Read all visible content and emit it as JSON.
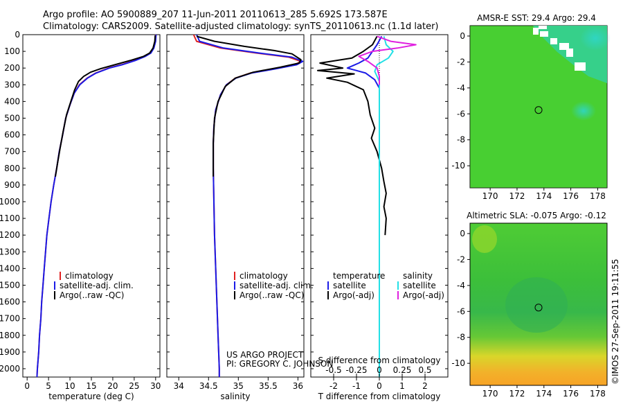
{
  "header": {
    "line1": "Argo profile: AO 5900889_207 11-Jun-2011 20110613_285 5.692S 173.587E",
    "line2": "Climatology: CARS2009. Satellite-adjusted climatology: synTS_20110613.nc (1.1d later)"
  },
  "credit": {
    "project": "US ARGO PROJECT",
    "pi": "PI: GREGORY C. JOHNSON"
  },
  "stamp": "©IMOS 27-Sep-2011 19:11:55",
  "colors": {
    "climatology": "#e02020",
    "satellite": "#1a1ae6",
    "argo": "#000000",
    "satellite_s": "#22e0e6",
    "argo_s": "#e020e0"
  },
  "chart_data": [
    {
      "id": "temperature",
      "type": "line",
      "xlabel": "temperature (deg C)",
      "ylabel": "",
      "xlim": [
        -1,
        31
      ],
      "ylim": [
        2050,
        0
      ],
      "xticks": [
        0,
        5,
        10,
        15,
        20,
        25,
        30
      ],
      "yticks": [
        0,
        100,
        200,
        300,
        400,
        500,
        600,
        700,
        800,
        900,
        1000,
        1100,
        1200,
        1300,
        1400,
        1500,
        1600,
        1700,
        1800,
        1900,
        2000
      ],
      "legend": [
        "climatology",
        "satellite-adj. clim.",
        "Argo(..raw -QC)"
      ],
      "series": [
        {
          "name": "climatology",
          "color": "climatology",
          "points": [
            [
              30.0,
              0
            ],
            [
              29.9,
              40
            ],
            [
              29.5,
              80
            ],
            [
              28.8,
              110
            ],
            [
              27.5,
              130
            ],
            [
              25.0,
              155
            ],
            [
              22.0,
              180
            ],
            [
              19.0,
              200
            ],
            [
              16.0,
              230
            ],
            [
              14.0,
              260
            ],
            [
              12.2,
              300
            ],
            [
              11.0,
              350
            ],
            [
              10.0,
              420
            ],
            [
              9.0,
              500
            ],
            [
              8.3,
              600
            ],
            [
              7.5,
              700
            ],
            [
              6.9,
              800
            ],
            [
              6.2,
              900
            ],
            [
              5.6,
              1000
            ],
            [
              5.1,
              1100
            ],
            [
              4.6,
              1200
            ],
            [
              4.3,
              1300
            ],
            [
              4.0,
              1400
            ],
            [
              3.7,
              1500
            ],
            [
              3.4,
              1600
            ],
            [
              3.2,
              1700
            ],
            [
              2.9,
              1800
            ],
            [
              2.7,
              1900
            ],
            [
              2.4,
              2000
            ],
            [
              2.3,
              2050
            ]
          ]
        },
        {
          "name": "satellite-adj. clim.",
          "color": "satellite",
          "points": [
            [
              30.1,
              0
            ],
            [
              30.0,
              40
            ],
            [
              29.6,
              80
            ],
            [
              28.9,
              110
            ],
            [
              27.6,
              130
            ],
            [
              25.2,
              155
            ],
            [
              22.2,
              180
            ],
            [
              19.2,
              200
            ],
            [
              16.1,
              230
            ],
            [
              14.1,
              260
            ],
            [
              12.3,
              300
            ],
            [
              11.0,
              350
            ],
            [
              10.0,
              420
            ],
            [
              9.0,
              500
            ],
            [
              8.3,
              600
            ],
            [
              7.5,
              700
            ],
            [
              6.9,
              800
            ],
            [
              6.2,
              900
            ],
            [
              5.6,
              1000
            ],
            [
              5.1,
              1100
            ],
            [
              4.6,
              1200
            ],
            [
              4.3,
              1300
            ],
            [
              4.0,
              1400
            ],
            [
              3.7,
              1500
            ],
            [
              3.4,
              1600
            ],
            [
              3.2,
              1700
            ],
            [
              2.9,
              1800
            ],
            [
              2.7,
              1900
            ],
            [
              2.4,
              2000
            ],
            [
              2.3,
              2050
            ]
          ]
        },
        {
          "name": "Argo(..raw -QC)",
          "color": "argo",
          "points": [
            [
              29.9,
              5
            ],
            [
              29.8,
              40
            ],
            [
              29.4,
              80
            ],
            [
              28.6,
              110
            ],
            [
              27.2,
              130
            ],
            [
              24.0,
              155
            ],
            [
              20.5,
              180
            ],
            [
              17.0,
              205
            ],
            [
              14.8,
              225
            ],
            [
              13.2,
              250
            ],
            [
              12.0,
              280
            ],
            [
              11.1,
              330
            ],
            [
              10.2,
              400
            ],
            [
              9.2,
              480
            ],
            [
              8.4,
              580
            ],
            [
              7.7,
              680
            ],
            [
              7.1,
              770
            ],
            [
              6.6,
              850
            ]
          ]
        }
      ]
    },
    {
      "id": "salinity",
      "type": "line",
      "xlabel": "salinity",
      "xlim": [
        33.8,
        36.1
      ],
      "ylim": [
        2050,
        0
      ],
      "xticks": [
        34,
        34.5,
        35,
        35.5,
        36
      ],
      "legend": [
        "climatology",
        "satellite-adj. clim.",
        "Argo(..raw -QC)"
      ],
      "series": [
        {
          "name": "climatology",
          "color": "climatology",
          "points": [
            [
              34.25,
              0
            ],
            [
              34.3,
              40
            ],
            [
              34.7,
              80
            ],
            [
              35.3,
              110
            ],
            [
              35.85,
              135
            ],
            [
              36.05,
              160
            ],
            [
              35.95,
              180
            ],
            [
              35.6,
              205
            ],
            [
              35.2,
              230
            ],
            [
              34.95,
              260
            ],
            [
              34.8,
              300
            ],
            [
              34.7,
              360
            ],
            [
              34.62,
              450
            ],
            [
              34.59,
              550
            ],
            [
              34.58,
              650
            ],
            [
              34.58,
              800
            ],
            [
              34.59,
              1000
            ],
            [
              34.6,
              1200
            ],
            [
              34.62,
              1400
            ],
            [
              34.64,
              1600
            ],
            [
              34.66,
              1800
            ],
            [
              34.68,
              2000
            ],
            [
              34.68,
              2050
            ]
          ]
        },
        {
          "name": "satellite-adj. clim.",
          "color": "satellite",
          "points": [
            [
              34.3,
              0
            ],
            [
              34.35,
              40
            ],
            [
              34.75,
              80
            ],
            [
              35.35,
              110
            ],
            [
              35.9,
              135
            ],
            [
              36.08,
              160
            ],
            [
              35.98,
              180
            ],
            [
              35.62,
              205
            ],
            [
              35.22,
              230
            ],
            [
              34.96,
              260
            ],
            [
              34.8,
              300
            ],
            [
              34.7,
              360
            ],
            [
              34.62,
              450
            ],
            [
              34.59,
              550
            ],
            [
              34.58,
              650
            ],
            [
              34.58,
              800
            ],
            [
              34.59,
              1000
            ],
            [
              34.6,
              1200
            ],
            [
              34.62,
              1400
            ],
            [
              34.64,
              1600
            ],
            [
              34.66,
              1800
            ],
            [
              34.68,
              2000
            ],
            [
              34.68,
              2050
            ]
          ]
        },
        {
          "name": "Argo(..raw -QC)",
          "color": "argo",
          "points": [
            [
              34.3,
              10
            ],
            [
              34.6,
              40
            ],
            [
              35.1,
              70
            ],
            [
              35.6,
              95
            ],
            [
              35.9,
              115
            ],
            [
              36.05,
              150
            ],
            [
              36.02,
              170
            ],
            [
              35.7,
              195
            ],
            [
              35.25,
              225
            ],
            [
              34.95,
              260
            ],
            [
              34.78,
              310
            ],
            [
              34.66,
              400
            ],
            [
              34.6,
              500
            ],
            [
              34.58,
              650
            ],
            [
              34.58,
              850
            ]
          ]
        }
      ]
    },
    {
      "id": "differences",
      "type": "line",
      "xlabel": "T difference from climatology",
      "top_label": "S difference from climatology",
      "xlim": [
        -3,
        3
      ],
      "ylim": [
        2050,
        0
      ],
      "xticks": [
        -2,
        -1,
        0,
        1,
        2
      ],
      "top_ticks": [
        "-0.5",
        "-0.25",
        "0",
        "0.25",
        "0.5"
      ],
      "top_tick_positions": [
        -2,
        -1,
        0,
        1,
        2
      ],
      "legend_left_title": "temperature",
      "legend_right_title": "salinity",
      "legend": [
        "satellite",
        "Argo(-adj)",
        "satellite",
        "Argo(-adj)"
      ],
      "series": [
        {
          "name": "T satellite",
          "color": "satellite",
          "points": [
            [
              0.1,
              10
            ],
            [
              -0.1,
              60
            ],
            [
              -0.3,
              100
            ],
            [
              -0.5,
              140
            ],
            [
              -0.9,
              170
            ],
            [
              -1.4,
              200
            ],
            [
              -0.6,
              230
            ],
            [
              -0.2,
              270
            ],
            [
              0,
              320
            ],
            [
              0,
              400
            ],
            [
              0,
              600
            ],
            [
              0,
              1000
            ],
            [
              0,
              1500
            ],
            [
              0,
              2000
            ],
            [
              0,
              2050
            ]
          ]
        },
        {
          "name": "T Argo(-adj)",
          "color": "argo",
          "points": [
            [
              -0.1,
              10
            ],
            [
              -0.3,
              60
            ],
            [
              -0.7,
              100
            ],
            [
              -1.2,
              140
            ],
            [
              -2.6,
              170
            ],
            [
              -1.6,
              200
            ],
            [
              -2.7,
              215
            ],
            [
              -1.1,
              235
            ],
            [
              -2.3,
              260
            ],
            [
              -1.4,
              285
            ],
            [
              -0.7,
              330
            ],
            [
              -0.5,
              400
            ],
            [
              -0.4,
              480
            ],
            [
              -0.2,
              560
            ],
            [
              -0.35,
              620
            ],
            [
              -0.1,
              700
            ],
            [
              0.1,
              800
            ],
            [
              0.2,
              880
            ],
            [
              0.3,
              950
            ],
            [
              0.2,
              1030
            ],
            [
              0.3,
              1100
            ],
            [
              0.25,
              1200
            ]
          ]
        },
        {
          "name": "S satellite",
          "color": "satellite_s",
          "points": [
            [
              0.2,
              10
            ],
            [
              0.3,
              60
            ],
            [
              0.6,
              100
            ],
            [
              0.4,
              140
            ],
            [
              -0.1,
              180
            ],
            [
              -0.2,
              220
            ],
            [
              0,
              280
            ],
            [
              0,
              400
            ],
            [
              0,
              800
            ],
            [
              0,
              1200
            ],
            [
              0,
              1600
            ],
            [
              0,
              2000
            ],
            [
              0,
              2050
            ]
          ]
        },
        {
          "name": "S Argo(-adj)",
          "color": "argo_s",
          "points": [
            [
              -0.1,
              10
            ],
            [
              0.5,
              40
            ],
            [
              1.6,
              60
            ],
            [
              0.8,
              80
            ],
            [
              -0.3,
              100
            ],
            [
              -0.9,
              130
            ],
            [
              -0.5,
              160
            ],
            [
              -0.1,
              200
            ],
            [
              0,
              250
            ],
            [
              0,
              300
            ]
          ]
        }
      ]
    },
    {
      "id": "sst_map",
      "type": "heatmap",
      "title": "AMSR-E SST: 29.4  Argo: 29.4",
      "xticks": [
        170,
        172,
        174,
        176,
        178
      ],
      "yticks": [
        0,
        -2,
        -4,
        -6,
        -8,
        -10
      ],
      "xlim": [
        168.5,
        178.7
      ],
      "ylim": [
        0.8,
        -11.7
      ],
      "argo_marker": [
        173.6,
        -5.7
      ]
    },
    {
      "id": "sla_map",
      "type": "heatmap",
      "title": "Altimetric SLA: -0.075  Argo: -0.12",
      "xticks": [
        170,
        172,
        174,
        176,
        178
      ],
      "yticks": [
        0,
        -2,
        -4,
        -6,
        -8,
        -10
      ],
      "xlim": [
        168.5,
        178.7
      ],
      "ylim": [
        0.8,
        -11.7
      ],
      "argo_marker": [
        173.6,
        -5.7
      ]
    }
  ]
}
